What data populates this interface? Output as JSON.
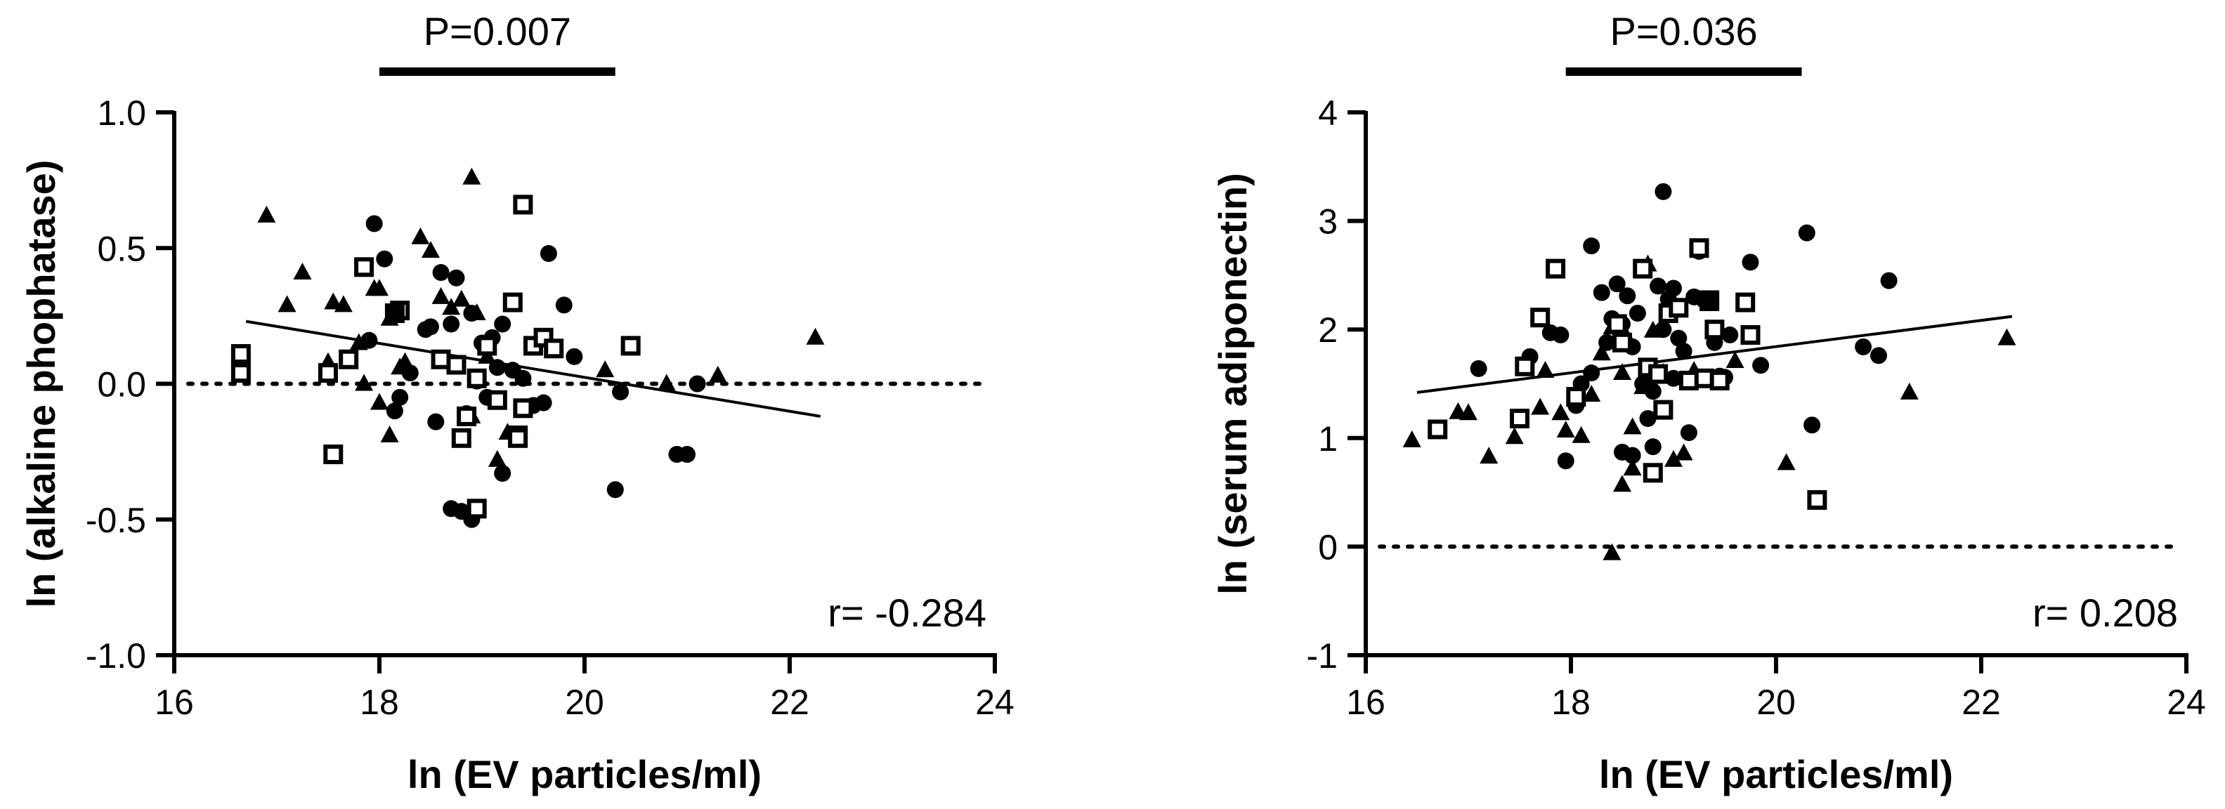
{
  "chart_data": [
    {
      "type": "scatter",
      "xlabel": "ln (EV particles/ml)",
      "ylabel": "ln (alkaline phophatase)",
      "xlim": [
        16,
        24
      ],
      "ylim": [
        -1.0,
        1.0
      ],
      "xticks": [
        16,
        18,
        20,
        22,
        24
      ],
      "xtick_labels": [
        "16",
        "18",
        "20",
        "22",
        "24"
      ],
      "yticks": [
        -1.0,
        -0.5,
        0.0,
        0.5,
        1.0
      ],
      "ytick_labels": [
        "-1.0",
        "-0.5",
        "0.0",
        "0.5",
        "1.0"
      ],
      "p_label": "P=0.007",
      "p_bar_range": [
        18.0,
        20.3
      ],
      "r_label": "r= -0.284",
      "reference_line_y": 0,
      "fit_line": {
        "x": [
          16.7,
          22.3
        ],
        "y": [
          0.23,
          -0.12
        ]
      },
      "series": [
        {
          "name": "circle",
          "marker": "circle",
          "points": [
            [
              17.95,
              0.59
            ],
            [
              18.05,
              0.46
            ],
            [
              18.5,
              0.21
            ],
            [
              18.6,
              0.41
            ],
            [
              18.75,
              0.39
            ],
            [
              18.7,
              0.22
            ],
            [
              18.9,
              0.26
            ],
            [
              19.0,
              0.15
            ],
            [
              19.1,
              0.17
            ],
            [
              19.2,
              0.22
            ],
            [
              19.3,
              0.05
            ],
            [
              19.4,
              0.02
            ],
            [
              19.6,
              -0.07
            ],
            [
              19.65,
              0.48
            ],
            [
              19.8,
              0.29
            ],
            [
              19.9,
              0.1
            ],
            [
              18.2,
              -0.05
            ],
            [
              18.15,
              -0.1
            ],
            [
              18.3,
              0.04
            ],
            [
              18.45,
              0.2
            ],
            [
              18.55,
              -0.14
            ],
            [
              18.7,
              -0.46
            ],
            [
              18.8,
              -0.47
            ],
            [
              18.9,
              -0.5
            ],
            [
              18.95,
              0.01
            ],
            [
              19.05,
              -0.05
            ],
            [
              19.2,
              -0.33
            ],
            [
              19.15,
              0.06
            ],
            [
              18.85,
              -0.11
            ],
            [
              17.9,
              0.16
            ],
            [
              20.3,
              -0.39
            ],
            [
              20.35,
              -0.03
            ],
            [
              20.9,
              -0.26
            ],
            [
              21.0,
              -0.26
            ],
            [
              21.1,
              0.0
            ],
            [
              19.5,
              -0.08
            ]
          ]
        },
        {
          "name": "triangle",
          "marker": "triangle",
          "points": [
            [
              16.9,
              0.62
            ],
            [
              17.1,
              0.29
            ],
            [
              17.25,
              0.41
            ],
            [
              17.55,
              0.3
            ],
            [
              17.65,
              0.29
            ],
            [
              17.8,
              0.15
            ],
            [
              17.85,
              0.0
            ],
            [
              17.95,
              0.35
            ],
            [
              18.0,
              0.35
            ],
            [
              18.1,
              0.24
            ],
            [
              18.2,
              0.06
            ],
            [
              18.1,
              -0.19
            ],
            [
              18.4,
              0.54
            ],
            [
              18.5,
              0.49
            ],
            [
              18.6,
              0.32
            ],
            [
              18.7,
              0.28
            ],
            [
              18.8,
              0.31
            ],
            [
              18.9,
              0.76
            ],
            [
              18.95,
              0.26
            ],
            [
              19.05,
              0.1
            ],
            [
              19.15,
              -0.28
            ],
            [
              19.25,
              -0.18
            ],
            [
              18.25,
              0.08
            ],
            [
              18.0,
              -0.07
            ],
            [
              18.9,
              -0.12
            ],
            [
              20.2,
              0.05
            ],
            [
              20.8,
              0.0
            ],
            [
              21.3,
              0.03
            ],
            [
              22.25,
              0.17
            ],
            [
              17.5,
              0.08
            ]
          ]
        },
        {
          "name": "open-square",
          "marker": "square-open",
          "points": [
            [
              16.65,
              0.11
            ],
            [
              16.65,
              0.04
            ],
            [
              17.5,
              0.04
            ],
            [
              17.55,
              -0.26
            ],
            [
              17.7,
              0.09
            ],
            [
              17.85,
              0.43
            ],
            [
              18.2,
              0.27
            ],
            [
              18.6,
              0.09
            ],
            [
              18.75,
              0.07
            ],
            [
              18.8,
              -0.2
            ],
            [
              18.85,
              -0.12
            ],
            [
              18.95,
              0.02
            ],
            [
              19.05,
              0.14
            ],
            [
              19.15,
              -0.06
            ],
            [
              19.3,
              0.3
            ],
            [
              19.35,
              -0.19
            ],
            [
              19.4,
              -0.09
            ],
            [
              19.5,
              0.14
            ],
            [
              19.6,
              0.17
            ],
            [
              19.7,
              0.13
            ],
            [
              19.4,
              0.66
            ],
            [
              18.95,
              -0.46
            ],
            [
              20.45,
              0.14
            ],
            [
              19.35,
              -0.2
            ]
          ]
        },
        {
          "name": "filled-square",
          "marker": "square",
          "points": [
            [
              18.15,
              0.26
            ]
          ]
        }
      ]
    },
    {
      "type": "scatter",
      "xlabel": "ln (EV particles/ml)",
      "ylabel": "ln (serum adiponectin)",
      "xlim": [
        16,
        24
      ],
      "ylim": [
        -1,
        4
      ],
      "xticks": [
        16,
        18,
        20,
        22,
        24
      ],
      "xtick_labels": [
        "16",
        "18",
        "20",
        "22",
        "24"
      ],
      "yticks": [
        -1,
        0,
        1,
        2,
        3,
        4
      ],
      "ytick_labels": [
        "-1",
        "0",
        "1",
        "2",
        "3",
        "4"
      ],
      "p_label": "P=0.036",
      "p_bar_range": [
        17.95,
        20.25
      ],
      "r_label": "r= 0.208",
      "reference_line_y": 0,
      "fit_line": {
        "x": [
          16.5,
          22.3
        ],
        "y": [
          1.42,
          2.12
        ]
      },
      "series": [
        {
          "name": "circle",
          "marker": "circle",
          "points": [
            [
              17.1,
              1.64
            ],
            [
              17.6,
              1.75
            ],
            [
              17.8,
              1.97
            ],
            [
              17.9,
              1.95
            ],
            [
              17.95,
              0.79
            ],
            [
              18.05,
              1.3
            ],
            [
              18.1,
              1.5
            ],
            [
              18.2,
              2.77
            ],
            [
              18.3,
              2.34
            ],
            [
              18.35,
              1.88
            ],
            [
              18.45,
              2.42
            ],
            [
              18.5,
              2.05
            ],
            [
              18.55,
              2.31
            ],
            [
              18.6,
              1.84
            ],
            [
              18.65,
              2.15
            ],
            [
              18.7,
              1.5
            ],
            [
              18.75,
              1.18
            ],
            [
              18.8,
              1.43
            ],
            [
              18.85,
              2.4
            ],
            [
              18.9,
              3.27
            ],
            [
              18.95,
              2.28
            ],
            [
              19.0,
              1.55
            ],
            [
              19.05,
              1.92
            ],
            [
              19.1,
              1.8
            ],
            [
              19.15,
              1.05
            ],
            [
              19.2,
              2.3
            ],
            [
              19.25,
              2.72
            ],
            [
              19.3,
              2.27
            ],
            [
              19.4,
              1.88
            ],
            [
              19.45,
              1.57
            ],
            [
              19.5,
              1.56
            ],
            [
              19.55,
              1.95
            ],
            [
              19.75,
              2.62
            ],
            [
              19.85,
              1.67
            ],
            [
              20.3,
              2.89
            ],
            [
              20.35,
              1.12
            ],
            [
              20.85,
              1.84
            ],
            [
              21.0,
              1.76
            ],
            [
              21.1,
              2.45
            ],
            [
              18.6,
              0.84
            ],
            [
              18.8,
              0.92
            ],
            [
              18.5,
              0.87
            ],
            [
              18.2,
              1.6
            ],
            [
              18.4,
              2.1
            ],
            [
              18.9,
              2.0
            ],
            [
              19.0,
              2.38
            ]
          ]
        },
        {
          "name": "triangle",
          "marker": "triangle",
          "points": [
            [
              16.45,
              0.98
            ],
            [
              16.9,
              1.24
            ],
            [
              17.0,
              1.23
            ],
            [
              17.2,
              0.83
            ],
            [
              17.45,
              1.01
            ],
            [
              17.5,
              1.16
            ],
            [
              17.7,
              1.28
            ],
            [
              17.75,
              1.62
            ],
            [
              17.9,
              1.23
            ],
            [
              17.95,
              1.07
            ],
            [
              18.1,
              1.02
            ],
            [
              18.2,
              1.4
            ],
            [
              18.3,
              1.78
            ],
            [
              18.4,
              2.02
            ],
            [
              18.5,
              1.6
            ],
            [
              18.55,
              1.92
            ],
            [
              18.6,
              1.1
            ],
            [
              18.7,
              1.47
            ],
            [
              18.8,
              1.99
            ],
            [
              18.9,
              1.6
            ],
            [
              19.0,
              0.8
            ],
            [
              19.1,
              0.86
            ],
            [
              19.2,
              1.62
            ],
            [
              18.5,
              0.57
            ],
            [
              18.6,
              0.72
            ],
            [
              19.6,
              1.71
            ],
            [
              20.1,
              0.77
            ],
            [
              21.3,
              1.42
            ],
            [
              22.25,
              1.92
            ],
            [
              18.4,
              -0.06
            ],
            [
              18.75,
              2.6
            ]
          ]
        },
        {
          "name": "open-square",
          "marker": "square-open",
          "points": [
            [
              16.7,
              1.08
            ],
            [
              17.5,
              1.18
            ],
            [
              17.55,
              1.66
            ],
            [
              17.7,
              2.11
            ],
            [
              17.85,
              2.56
            ],
            [
              18.05,
              1.38
            ],
            [
              18.45,
              2.05
            ],
            [
              18.5,
              1.88
            ],
            [
              18.7,
              2.56
            ],
            [
              18.75,
              1.65
            ],
            [
              18.8,
              0.68
            ],
            [
              18.85,
              1.59
            ],
            [
              18.9,
              1.26
            ],
            [
              18.95,
              2.15
            ],
            [
              19.05,
              2.2
            ],
            [
              19.15,
              1.53
            ],
            [
              19.25,
              2.75
            ],
            [
              19.3,
              1.55
            ],
            [
              19.35,
              2.27
            ],
            [
              19.4,
              2.0
            ],
            [
              19.45,
              1.53
            ],
            [
              19.7,
              2.25
            ],
            [
              19.75,
              1.95
            ],
            [
              20.4,
              0.43
            ]
          ]
        },
        {
          "name": "filled-square",
          "marker": "square",
          "points": [
            [
              19.35,
              2.26
            ]
          ]
        }
      ]
    }
  ]
}
